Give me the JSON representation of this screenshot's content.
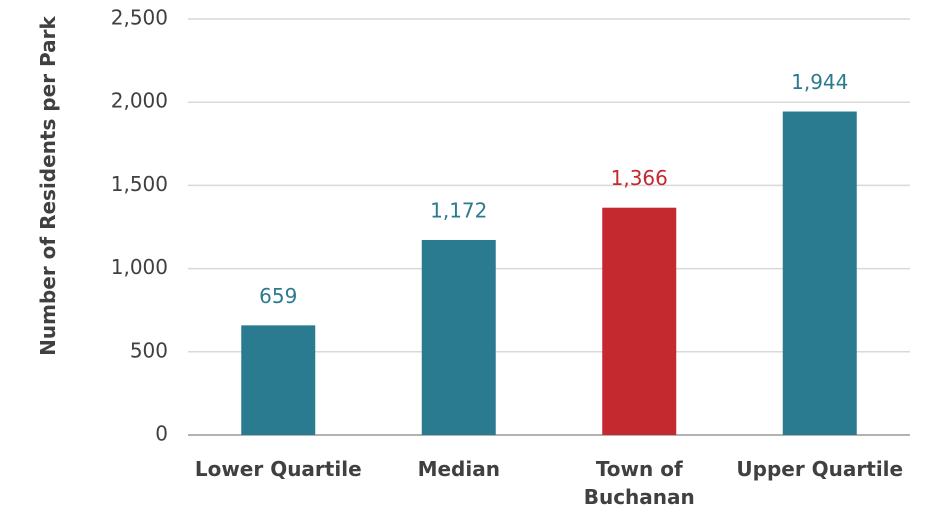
{
  "chart_data": {
    "type": "bar",
    "y_label": "Number of Residents per Park",
    "categories": [
      "Lower Quartile",
      "Median",
      "Town of Buchanan",
      "Upper Quartile"
    ],
    "values": [
      659,
      1172,
      1366,
      1944
    ],
    "value_labels": [
      "659",
      "1,172",
      "1,366",
      "1,944"
    ],
    "colors": [
      "#2b7b90",
      "#2b7b90",
      "#c4292f",
      "#2b7b90"
    ],
    "ylim": [
      0,
      2500
    ],
    "yticks": [
      0,
      500,
      {
        "value": 1000,
        "label": "1,000"
      },
      {
        "value": 1500,
        "label": "1,500"
      },
      {
        "value": 2000,
        "label": "2,000"
      },
      {
        "value": 2500,
        "label": "2,500"
      }
    ],
    "grid": true
  }
}
